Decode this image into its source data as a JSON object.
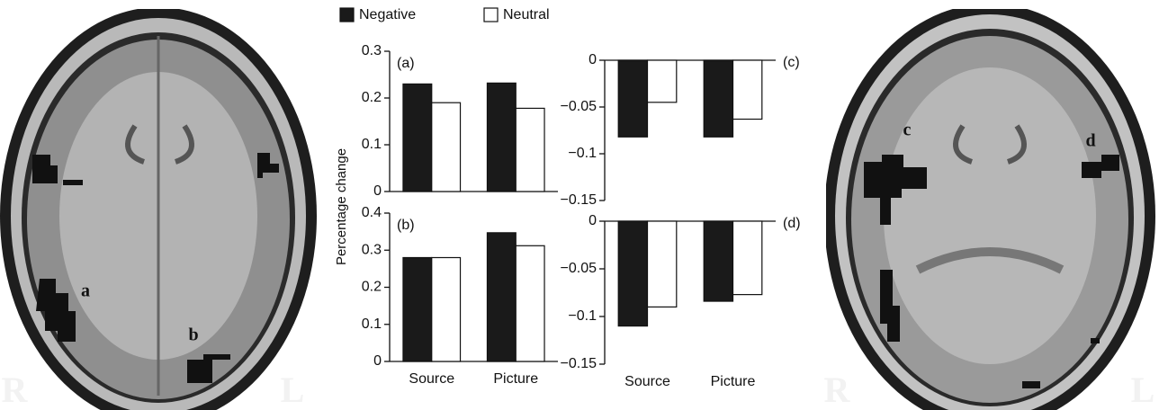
{
  "images": [
    {
      "region_labels": [
        "a",
        "b"
      ],
      "left_side": "R",
      "right_side": "L"
    },
    {
      "region_labels": [
        "c",
        "d"
      ],
      "left_side": "R",
      "right_side": "L"
    }
  ],
  "chart_data": [
    {
      "type": "bar",
      "panel": "(a)",
      "ylabel": "Percentage change",
      "categories": [
        null,
        null
      ],
      "series": [
        {
          "name": "Negative",
          "color": "#1a1a1a",
          "values": [
            0.23,
            0.232
          ]
        },
        {
          "name": "Neutral",
          "color": "#ffffff",
          "values": [
            0.19,
            0.178
          ]
        }
      ],
      "ylim": [
        0,
        0.3
      ],
      "yticks": [
        0,
        0.1,
        0.2,
        0.3
      ]
    },
    {
      "type": "bar",
      "panel": "(b)",
      "categories": [
        "Source",
        "Picture"
      ],
      "series": [
        {
          "color": "#1a1a1a",
          "values": [
            0.28,
            0.347
          ]
        },
        {
          "color": "#ffffff",
          "values": [
            0.28,
            0.312
          ]
        }
      ],
      "ylim": [
        0,
        0.4
      ],
      "yticks": [
        0,
        0.1,
        0.2,
        0.3,
        0.4
      ]
    },
    {
      "type": "bar",
      "panel": "(c)",
      "categories": [
        null,
        null
      ],
      "series": [
        {
          "color": "#1a1a1a",
          "values": [
            -0.082,
            -0.082
          ]
        },
        {
          "color": "#ffffff",
          "values": [
            -0.045,
            -0.063
          ]
        }
      ],
      "ylim": [
        -0.15,
        0
      ],
      "yticks": [
        0,
        {
          "value": -0.05,
          "label": "−0.05"
        },
        {
          "value": -0.1,
          "label": "−0.1"
        },
        {
          "value": -0.15,
          "label": "−0.15"
        }
      ]
    },
    {
      "type": "bar",
      "panel": "(d)",
      "categories": [
        "Source",
        "Picture"
      ],
      "series": [
        {
          "color": "#1a1a1a",
          "values": [
            -0.11,
            -0.084
          ]
        },
        {
          "color": "#ffffff",
          "values": [
            -0.09,
            -0.077
          ]
        }
      ],
      "ylim": [
        -0.15,
        0
      ],
      "yticks": [
        0,
        {
          "value": -0.05,
          "label": "−0.05"
        },
        {
          "value": -0.1,
          "label": "−0.1"
        },
        {
          "value": -0.15,
          "label": "−0.15"
        }
      ]
    }
  ]
}
